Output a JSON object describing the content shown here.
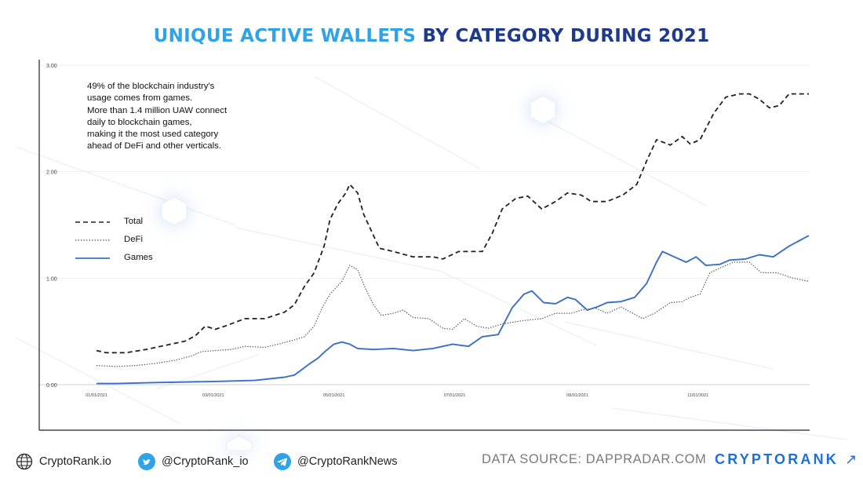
{
  "title": {
    "highlight": "UNIQUE ACTIVE WALLETS",
    "rest": "BY CATEGORY DURING 2021"
  },
  "note": [
    "49% of the blockchain industry's",
    "usage comes from games.",
    "More than 1.4 million UAW connect",
    "daily to blockchain games,",
    "making it the most used category",
    "ahead of DeFi and other verticals."
  ],
  "footer": {
    "website": "CryptoRank.io",
    "twitter": "@CryptoRank_io",
    "telegram": "@CryptoRankNews",
    "source": "DATA SOURCE: DAPPRADAR.COM",
    "brand": "CRYPTORANK",
    "brand_arrow": "↗"
  },
  "colors": {
    "total": "#222222",
    "defi": "#555555",
    "games": "#3a6fc4",
    "title_highlight": "#2fa3e6",
    "title_rest": "#1f3a8a"
  },
  "chart_data": {
    "type": "line",
    "title": "UNIQUE ACTIVE WALLETS BY CATEGORY DURING 2021",
    "y_ticks": [
      "0.00",
      "1.00",
      "2.00",
      "3.00"
    ],
    "ylim": [
      0,
      3
    ],
    "x_ticks": [
      "01/01/2021",
      "03/01/2021",
      "05/01/2021",
      "07/01/2021",
      "09/01/2021",
      "11/01/2021"
    ],
    "x_tick_days": [
      0,
      59,
      120,
      181,
      243,
      304
    ],
    "legend_position": "left",
    "grid": "horizontal",
    "series": [
      {
        "name": "Total",
        "style": "dashed",
        "points": [
          [
            0,
            0.32
          ],
          [
            5,
            0.3
          ],
          [
            15,
            0.3
          ],
          [
            25,
            0.33
          ],
          [
            35,
            0.37
          ],
          [
            45,
            0.41
          ],
          [
            50,
            0.46
          ],
          [
            55,
            0.55
          ],
          [
            60,
            0.52
          ],
          [
            65,
            0.55
          ],
          [
            75,
            0.62
          ],
          [
            85,
            0.62
          ],
          [
            95,
            0.68
          ],
          [
            100,
            0.75
          ],
          [
            105,
            0.92
          ],
          [
            110,
            1.05
          ],
          [
            115,
            1.3
          ],
          [
            118,
            1.55
          ],
          [
            122,
            1.7
          ],
          [
            126,
            1.8
          ],
          [
            128,
            1.88
          ],
          [
            132,
            1.8
          ],
          [
            135,
            1.6
          ],
          [
            140,
            1.4
          ],
          [
            143,
            1.28
          ],
          [
            150,
            1.25
          ],
          [
            160,
            1.2
          ],
          [
            170,
            1.2
          ],
          [
            175,
            1.18
          ],
          [
            183,
            1.25
          ],
          [
            195,
            1.25
          ],
          [
            200,
            1.42
          ],
          [
            205,
            1.65
          ],
          [
            212,
            1.75
          ],
          [
            218,
            1.77
          ],
          [
            225,
            1.65
          ],
          [
            232,
            1.72
          ],
          [
            238,
            1.8
          ],
          [
            245,
            1.78
          ],
          [
            250,
            1.72
          ],
          [
            258,
            1.72
          ],
          [
            266,
            1.78
          ],
          [
            273,
            1.88
          ],
          [
            278,
            2.1
          ],
          [
            283,
            2.3
          ],
          [
            290,
            2.25
          ],
          [
            296,
            2.33
          ],
          [
            300,
            2.26
          ],
          [
            305,
            2.3
          ],
          [
            312,
            2.55
          ],
          [
            318,
            2.7
          ],
          [
            325,
            2.73
          ],
          [
            330,
            2.73
          ],
          [
            335,
            2.68
          ],
          [
            340,
            2.6
          ],
          [
            345,
            2.62
          ],
          [
            350,
            2.73
          ],
          [
            360,
            2.73
          ]
        ]
      },
      {
        "name": "DeFi",
        "style": "dotted",
        "points": [
          [
            0,
            0.18
          ],
          [
            10,
            0.17
          ],
          [
            20,
            0.18
          ],
          [
            30,
            0.2
          ],
          [
            40,
            0.23
          ],
          [
            48,
            0.27
          ],
          [
            53,
            0.31
          ],
          [
            60,
            0.32
          ],
          [
            68,
            0.33
          ],
          [
            75,
            0.36
          ],
          [
            85,
            0.35
          ],
          [
            92,
            0.38
          ],
          [
            100,
            0.42
          ],
          [
            105,
            0.45
          ],
          [
            110,
            0.55
          ],
          [
            114,
            0.72
          ],
          [
            118,
            0.85
          ],
          [
            124,
            0.97
          ],
          [
            128,
            1.12
          ],
          [
            132,
            1.08
          ],
          [
            136,
            0.9
          ],
          [
            140,
            0.75
          ],
          [
            144,
            0.65
          ],
          [
            150,
            0.67
          ],
          [
            155,
            0.7
          ],
          [
            160,
            0.63
          ],
          [
            168,
            0.62
          ],
          [
            175,
            0.53
          ],
          [
            180,
            0.52
          ],
          [
            186,
            0.62
          ],
          [
            192,
            0.55
          ],
          [
            198,
            0.53
          ],
          [
            205,
            0.57
          ],
          [
            215,
            0.6
          ],
          [
            225,
            0.62
          ],
          [
            232,
            0.67
          ],
          [
            240,
            0.67
          ],
          [
            245,
            0.7
          ],
          [
            252,
            0.72
          ],
          [
            258,
            0.67
          ],
          [
            265,
            0.73
          ],
          [
            270,
            0.68
          ],
          [
            276,
            0.62
          ],
          [
            282,
            0.67
          ],
          [
            290,
            0.77
          ],
          [
            296,
            0.78
          ],
          [
            300,
            0.82
          ],
          [
            305,
            0.85
          ],
          [
            310,
            1.05
          ],
          [
            318,
            1.12
          ],
          [
            322,
            1.15
          ],
          [
            330,
            1.15
          ],
          [
            336,
            1.05
          ],
          [
            344,
            1.05
          ],
          [
            352,
            1.0
          ],
          [
            360,
            0.97
          ]
        ]
      },
      {
        "name": "Games",
        "style": "solid",
        "points": [
          [
            0,
            0.01
          ],
          [
            10,
            0.01
          ],
          [
            30,
            0.02
          ],
          [
            60,
            0.03
          ],
          [
            80,
            0.04
          ],
          [
            95,
            0.07
          ],
          [
            100,
            0.09
          ],
          [
            108,
            0.2
          ],
          [
            112,
            0.25
          ],
          [
            116,
            0.32
          ],
          [
            120,
            0.38
          ],
          [
            124,
            0.4
          ],
          [
            128,
            0.38
          ],
          [
            132,
            0.34
          ],
          [
            140,
            0.33
          ],
          [
            150,
            0.34
          ],
          [
            160,
            0.32
          ],
          [
            170,
            0.34
          ],
          [
            180,
            0.38
          ],
          [
            188,
            0.36
          ],
          [
            195,
            0.45
          ],
          [
            203,
            0.47
          ],
          [
            210,
            0.72
          ],
          [
            216,
            0.85
          ],
          [
            220,
            0.88
          ],
          [
            226,
            0.77
          ],
          [
            232,
            0.76
          ],
          [
            238,
            0.82
          ],
          [
            242,
            0.8
          ],
          [
            248,
            0.7
          ],
          [
            253,
            0.73
          ],
          [
            258,
            0.77
          ],
          [
            265,
            0.78
          ],
          [
            272,
            0.82
          ],
          [
            278,
            0.95
          ],
          [
            283,
            1.15
          ],
          [
            286,
            1.25
          ],
          [
            292,
            1.2
          ],
          [
            298,
            1.15
          ],
          [
            303,
            1.2
          ],
          [
            308,
            1.12
          ],
          [
            315,
            1.13
          ],
          [
            320,
            1.17
          ],
          [
            328,
            1.18
          ],
          [
            335,
            1.22
          ],
          [
            342,
            1.2
          ],
          [
            350,
            1.3
          ],
          [
            360,
            1.4
          ]
        ]
      }
    ]
  }
}
